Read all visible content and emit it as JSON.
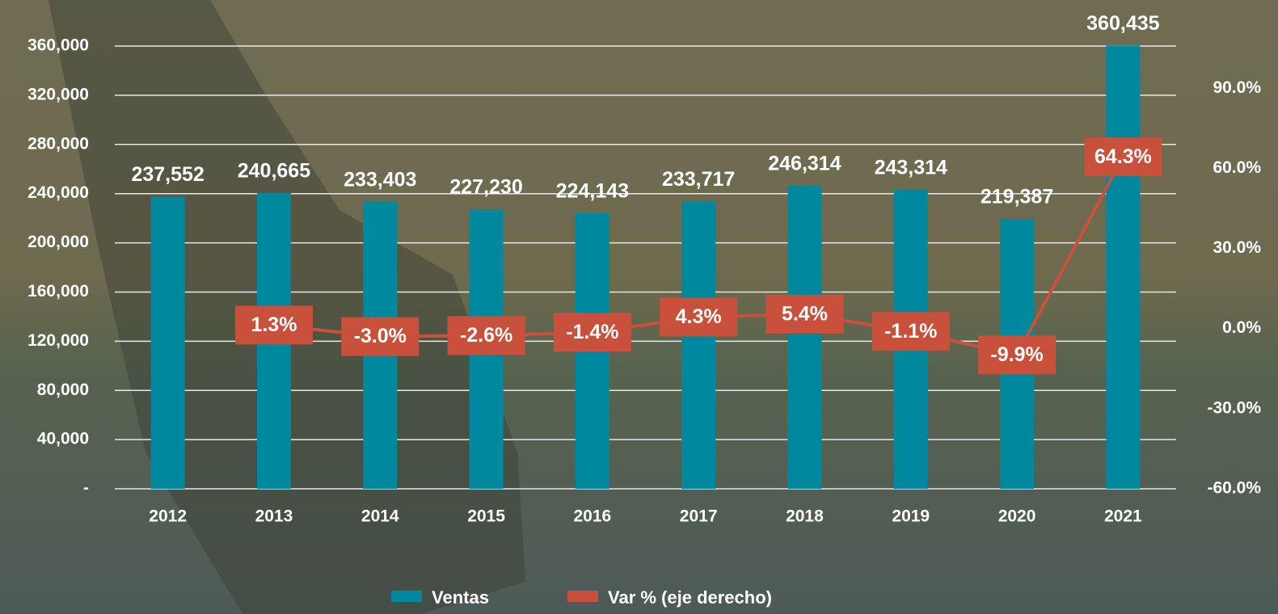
{
  "chart_data": {
    "type": "bar",
    "categories": [
      "2012",
      "2013",
      "2014",
      "2015",
      "2016",
      "2017",
      "2018",
      "2019",
      "2020",
      "2021"
    ],
    "series": [
      {
        "name": "Ventas",
        "type": "bar",
        "color": "#00899e",
        "values": [
          237552,
          240665,
          233403,
          227230,
          224143,
          233717,
          246314,
          243314,
          219387,
          360435
        ],
        "value_labels": [
          "237,552",
          "240,665",
          "233,403",
          "227,230",
          "224,143",
          "233,717",
          "246,314",
          "243,314",
          "219,387",
          "360,435"
        ]
      },
      {
        "name": "Var % (eje derecho)",
        "type": "line",
        "axis": "y2",
        "color": "#c9503a",
        "values": [
          null,
          1.3,
          -3.0,
          -2.6,
          -1.4,
          4.3,
          5.4,
          -1.1,
          -9.9,
          64.3
        ],
        "value_labels": [
          null,
          "1.3%",
          "-3.0%",
          "-2.6%",
          "-1.4%",
          "4.3%",
          "5.4%",
          "-1.1%",
          "-9.9%",
          "64.3%"
        ]
      }
    ],
    "ylim": [
      0,
      380000
    ],
    "yticks": [
      {
        "value": 0,
        "label": "-"
      },
      {
        "value": 40000,
        "label": "40,000"
      },
      {
        "value": 80000,
        "label": "80,000"
      },
      {
        "value": 120000,
        "label": "120,000"
      },
      {
        "value": 160000,
        "label": "160,000"
      },
      {
        "value": 200000,
        "label": "200,000"
      },
      {
        "value": 240000,
        "label": "240,000"
      },
      {
        "value": 280000,
        "label": "280,000"
      },
      {
        "value": 320000,
        "label": "320,000"
      },
      {
        "value": 360000,
        "label": "360,000"
      }
    ],
    "y2lim": [
      -60,
      115
    ],
    "y2ticks": [
      {
        "value": -60,
        "label": "-60.0%"
      },
      {
        "value": -30,
        "label": "-30.0%"
      },
      {
        "value": 0,
        "label": "0.0%"
      },
      {
        "value": 30,
        "label": "30.0%"
      },
      {
        "value": 60,
        "label": "60.0%"
      },
      {
        "value": 90,
        "label": "90.0%"
      }
    ],
    "grid": true,
    "legend": "bottom"
  }
}
